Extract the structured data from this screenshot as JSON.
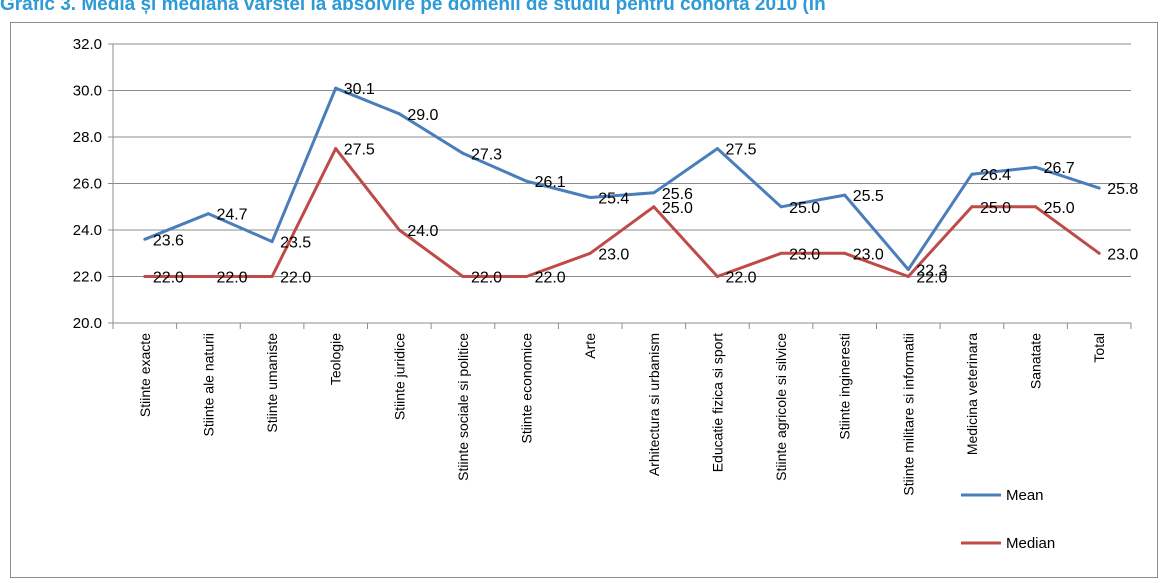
{
  "title": "Grafic 3. Media și mediana vârstei la absolvire pe domenii de studiu pentru cohorta 2010 (în",
  "chart_data": {
    "type": "line",
    "categories": [
      "Stiinte exacte",
      "Stiinte ale naturii",
      "Stiinte umaniste",
      "Teologie",
      "Stiinte juridice",
      "Stiinte sociale si politice",
      "Stiinte economice",
      "Arte",
      "Arhitectura si urbanism",
      "Educatie fizica si sport",
      "Stiinte agricole si silvice",
      "Stiinte ingineresti",
      "Stiinte militare si informatii",
      "Medicina veterinara",
      "Sanatate",
      "Total"
    ],
    "series": [
      {
        "name": "Mean",
        "color": "#4A7EBB",
        "values": [
          23.6,
          24.7,
          23.5,
          30.1,
          29.0,
          27.3,
          26.1,
          25.4,
          25.6,
          27.5,
          25.0,
          25.5,
          22.3,
          26.4,
          26.7,
          25.8
        ],
        "labels": [
          "23.6",
          "24.7",
          "23.5",
          "30.1",
          "29.0",
          "27.3",
          "26.1",
          "25.4",
          "25.6",
          "27.5",
          "25.0",
          "25.5",
          "22.3",
          "26.4",
          "26.7",
          "25.8"
        ]
      },
      {
        "name": "Median",
        "color": "#BE4B48",
        "values": [
          22.0,
          22.0,
          22.0,
          27.5,
          24.0,
          22.0,
          22.0,
          23.0,
          25.0,
          22.0,
          23.0,
          23.0,
          22.0,
          25.0,
          25.0,
          23.0
        ],
        "labels": [
          "22.0",
          "22.0",
          "22.0",
          "27.5",
          "24.0",
          "22.0",
          "22.0",
          "23.0",
          "25.0",
          "22.0",
          "23.0",
          "23.0",
          "22.0",
          "25.0",
          "25.0",
          "23.0"
        ]
      }
    ],
    "ylim": [
      20.0,
      32.0
    ],
    "yticks": [
      "20.0",
      "22.0",
      "24.0",
      "26.0",
      "28.0",
      "30.0",
      "32.0"
    ],
    "grid": true,
    "legend": "bottom-right"
  }
}
